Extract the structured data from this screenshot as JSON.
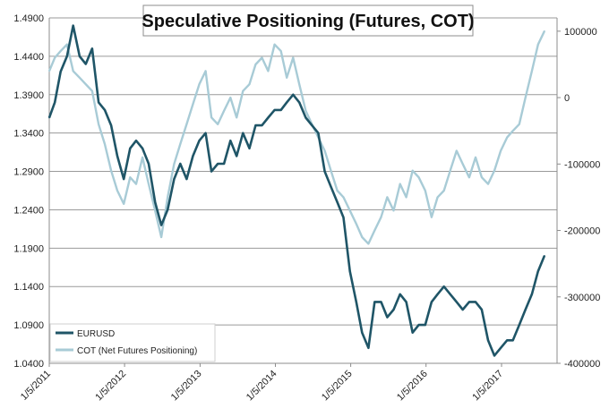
{
  "chart_data": {
    "type": "line",
    "title": "Speculative Positioning (Futures, COT)",
    "xlabel": "",
    "ylabel": "",
    "x_tick_labels": [
      "1/5/2011",
      "1/5/2012",
      "1/5/2013",
      "1/5/2014",
      "1/5/2015",
      "1/5/2016",
      "1/5/2017"
    ],
    "y_left": {
      "ylim": [
        1.04,
        1.49
      ],
      "tick_labels": [
        "1.4900",
        "1.4400",
        "1.3900",
        "1.3400",
        "1.2900",
        "1.2400",
        "1.1900",
        "1.1400",
        "1.0900",
        "1.0400"
      ]
    },
    "y_right": {
      "ylim": [
        -400000,
        120000
      ],
      "tick_labels": [
        "100000",
        "0",
        "-100000",
        "-200000",
        "-300000",
        "-400000"
      ]
    },
    "grid": true,
    "legend_position": "bottom-left",
    "colors": {
      "eurusd": "#1f5567",
      "cot": "#a8cbd6",
      "grid": "#9a9a9a",
      "axis": "#8c8c8c"
    },
    "series": [
      {
        "name": "EURUSD",
        "axis": "left",
        "x": [
          "2011-01-05",
          "2011-02-01",
          "2011-03-01",
          "2011-04-01",
          "2011-05-01",
          "2011-06-01",
          "2011-07-01",
          "2011-08-01",
          "2011-09-01",
          "2011-10-01",
          "2011-11-01",
          "2011-12-01",
          "2012-01-01",
          "2012-02-01",
          "2012-03-01",
          "2012-04-01",
          "2012-05-01",
          "2012-06-01",
          "2012-07-01",
          "2012-08-01",
          "2012-09-01",
          "2012-10-01",
          "2012-11-01",
          "2012-12-01",
          "2013-01-01",
          "2013-02-01",
          "2013-03-01",
          "2013-04-01",
          "2013-05-01",
          "2013-06-01",
          "2013-07-01",
          "2013-08-01",
          "2013-09-01",
          "2013-10-01",
          "2013-11-01",
          "2013-12-01",
          "2014-01-01",
          "2014-02-01",
          "2014-03-01",
          "2014-04-01",
          "2014-05-01",
          "2014-06-01",
          "2014-07-01",
          "2014-08-01",
          "2014-09-01",
          "2014-10-01",
          "2014-11-01",
          "2014-12-01",
          "2015-01-01",
          "2015-02-01",
          "2015-03-01",
          "2015-04-01",
          "2015-05-01",
          "2015-06-01",
          "2015-07-01",
          "2015-08-01",
          "2015-09-01",
          "2015-10-01",
          "2015-11-01",
          "2015-12-01",
          "2016-01-01",
          "2016-02-01",
          "2016-03-01",
          "2016-04-01",
          "2016-05-01",
          "2016-06-01",
          "2016-07-01",
          "2016-08-01",
          "2016-09-01",
          "2016-10-01",
          "2016-11-01",
          "2016-12-01",
          "2017-01-01",
          "2017-02-01",
          "2017-03-01",
          "2017-04-01",
          "2017-05-01",
          "2017-06-01",
          "2017-07-01",
          "2017-08-01"
        ],
        "values": [
          1.36,
          1.38,
          1.42,
          1.44,
          1.48,
          1.44,
          1.43,
          1.45,
          1.38,
          1.37,
          1.35,
          1.31,
          1.28,
          1.32,
          1.33,
          1.32,
          1.3,
          1.25,
          1.22,
          1.24,
          1.28,
          1.3,
          1.28,
          1.31,
          1.33,
          1.34,
          1.29,
          1.3,
          1.3,
          1.33,
          1.31,
          1.34,
          1.32,
          1.35,
          1.35,
          1.36,
          1.37,
          1.37,
          1.38,
          1.39,
          1.38,
          1.36,
          1.35,
          1.34,
          1.29,
          1.27,
          1.25,
          1.23,
          1.16,
          1.12,
          1.08,
          1.06,
          1.12,
          1.12,
          1.1,
          1.11,
          1.13,
          1.12,
          1.08,
          1.09,
          1.09,
          1.12,
          1.13,
          1.14,
          1.13,
          1.12,
          1.11,
          1.12,
          1.12,
          1.11,
          1.07,
          1.05,
          1.06,
          1.07,
          1.07,
          1.09,
          1.11,
          1.13,
          1.16,
          1.18
        ]
      },
      {
        "name": "COT (Net Futures Positioning)",
        "axis": "right",
        "x": [
          "2011-01-05",
          "2011-02-01",
          "2011-03-01",
          "2011-04-01",
          "2011-05-01",
          "2011-06-01",
          "2011-07-01",
          "2011-08-01",
          "2011-09-01",
          "2011-10-01",
          "2011-11-01",
          "2011-12-01",
          "2012-01-01",
          "2012-02-01",
          "2012-03-01",
          "2012-04-01",
          "2012-05-01",
          "2012-06-01",
          "2012-07-01",
          "2012-08-01",
          "2012-09-01",
          "2012-10-01",
          "2012-11-01",
          "2012-12-01",
          "2013-01-01",
          "2013-02-01",
          "2013-03-01",
          "2013-04-01",
          "2013-05-01",
          "2013-06-01",
          "2013-07-01",
          "2013-08-01",
          "2013-09-01",
          "2013-10-01",
          "2013-11-01",
          "2013-12-01",
          "2014-01-01",
          "2014-02-01",
          "2014-03-01",
          "2014-04-01",
          "2014-05-01",
          "2014-06-01",
          "2014-07-01",
          "2014-08-01",
          "2014-09-01",
          "2014-10-01",
          "2014-11-01",
          "2014-12-01",
          "2015-01-01",
          "2015-02-01",
          "2015-03-01",
          "2015-04-01",
          "2015-05-01",
          "2015-06-01",
          "2015-07-01",
          "2015-08-01",
          "2015-09-01",
          "2015-10-01",
          "2015-11-01",
          "2015-12-01",
          "2016-01-01",
          "2016-02-01",
          "2016-03-01",
          "2016-04-01",
          "2016-05-01",
          "2016-06-01",
          "2016-07-01",
          "2016-08-01",
          "2016-09-01",
          "2016-10-01",
          "2016-11-01",
          "2016-12-01",
          "2017-01-01",
          "2017-02-01",
          "2017-03-01",
          "2017-04-01",
          "2017-05-01",
          "2017-06-01",
          "2017-07-01",
          "2017-08-01"
        ],
        "values": [
          40000,
          60000,
          70000,
          80000,
          40000,
          30000,
          20000,
          10000,
          -40000,
          -70000,
          -110000,
          -140000,
          -160000,
          -120000,
          -130000,
          -90000,
          -130000,
          -170000,
          -210000,
          -150000,
          -100000,
          -70000,
          -40000,
          -10000,
          20000,
          40000,
          -30000,
          -40000,
          -20000,
          0,
          -30000,
          10000,
          20000,
          50000,
          60000,
          40000,
          80000,
          70000,
          30000,
          60000,
          20000,
          -20000,
          -40000,
          -60000,
          -80000,
          -110000,
          -140000,
          -150000,
          -170000,
          -190000,
          -210000,
          -220000,
          -200000,
          -180000,
          -150000,
          -170000,
          -130000,
          -150000,
          -110000,
          -120000,
          -140000,
          -180000,
          -150000,
          -140000,
          -110000,
          -80000,
          -100000,
          -120000,
          -90000,
          -120000,
          -130000,
          -110000,
          -80000,
          -60000,
          -50000,
          -40000,
          0,
          40000,
          80000,
          100000
        ]
      }
    ],
    "legend": [
      "EURUSD",
      "COT (Net Futures Positioning)"
    ]
  }
}
